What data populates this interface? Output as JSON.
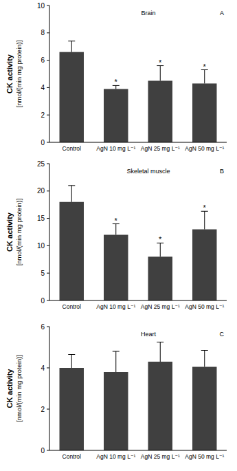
{
  "chart_data": [
    {
      "type": "bar",
      "title": "Brain",
      "panel_label": "A",
      "y_label": [
        "CK activity",
        "[nmol/(min mg protein)]"
      ],
      "categories": [
        "Control",
        "AgN 10 mg L⁻¹",
        "AgN 25 mg L⁻¹",
        "AgN 50 mg L⁻¹"
      ],
      "values": [
        6.6,
        3.9,
        4.5,
        4.3
      ],
      "errors": [
        0.8,
        0.25,
        1.1,
        1.0
      ],
      "significance": [
        null,
        "*",
        "*",
        "*"
      ],
      "color": "#404040",
      "ylim": [
        0,
        10
      ],
      "yticks": [
        0,
        2,
        4,
        6,
        8,
        10
      ],
      "grid": false
    },
    {
      "type": "bar",
      "title": "Skeletal muscle",
      "panel_label": "B",
      "y_label": [
        "CK activity",
        "[nmol/(min mg protein)]"
      ],
      "categories": [
        "Control",
        "AgN 10 mg L⁻¹",
        "AgN 25 mg L⁻¹",
        "AgN 50 mg L⁻¹"
      ],
      "values": [
        18,
        12,
        8,
        13
      ],
      "errors": [
        3,
        2,
        2.5,
        3.3
      ],
      "significance": [
        null,
        "*",
        "*",
        "*"
      ],
      "color": "#404040",
      "ylim": [
        0,
        25
      ],
      "yticks": [
        0,
        5,
        10,
        15,
        20,
        25
      ],
      "grid": false
    },
    {
      "type": "bar",
      "title": "Heart",
      "panel_label": "C",
      "y_label": [
        "CK activity",
        "[nmol/(min mg protein)]"
      ],
      "categories": [
        "Control",
        "AgN 10 mg L⁻¹",
        "AgN 25 mg L⁻¹",
        "AgN 50 mg L⁻¹"
      ],
      "values": [
        4.0,
        3.8,
        4.3,
        4.05
      ],
      "errors": [
        0.65,
        1.0,
        0.95,
        0.8
      ],
      "significance": [
        null,
        null,
        null,
        null
      ],
      "color": "#404040",
      "ylim": [
        0,
        6
      ],
      "yticks": [
        0,
        2,
        4,
        6
      ],
      "grid": false
    }
  ]
}
